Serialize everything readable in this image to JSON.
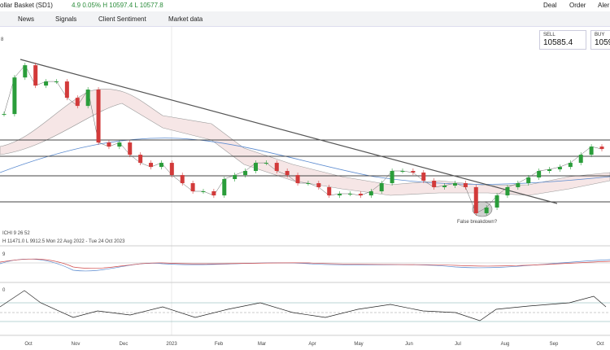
{
  "header": {
    "instrument": "ollar Basket (SD1)",
    "change": "4.9 0.05% H 10597.4 L 10577.8",
    "actions": [
      "Deal",
      "Order",
      "Aler"
    ]
  },
  "toolbar": [
    "News",
    "Signals",
    "Client Sentiment",
    "Market data"
  ],
  "quotes": {
    "sell_label": "SELL",
    "sell": "10585.4",
    "buy_label": "BUY",
    "buy": "1059"
  },
  "chart": {
    "corner": "8",
    "legend": "ICHI  9  26  52",
    "range": "H 11471.0  L 9912.5  Mon 22 Aug 2022 - Tue 24 Oct 2023",
    "annotation": "False breakdown?",
    "macd_label": "9",
    "rsi_label": "0",
    "months": [
      "Oct",
      "Nov",
      "Dec",
      "2023",
      "Feb",
      "Mar",
      "Apr",
      "May",
      "Jun",
      "Jul",
      "Aug",
      "Sep",
      "Oct"
    ],
    "ylim": [
      9750,
      11740
    ],
    "closes": [
      10927,
      11292,
      11414,
      11211,
      11252,
      11252,
      11089,
      11008,
      11171,
      10643,
      10602,
      10643,
      10521,
      10440,
      10399,
      10440,
      10318,
      10237,
      10156,
      10156,
      10115,
      10278,
      10318,
      10359,
      10440,
      10440,
      10359,
      10318,
      10237,
      10237,
      10197,
      10115,
      10132,
      10132,
      10115,
      10156,
      10237,
      10359,
      10359,
      10343,
      10262,
      10197,
      10213,
      10237,
      10197,
      9937,
      9994,
      10115,
      10197,
      10237,
      10294,
      10359,
      10375,
      10399,
      10440,
      10521,
      10602,
      10578
    ]
  }
}
